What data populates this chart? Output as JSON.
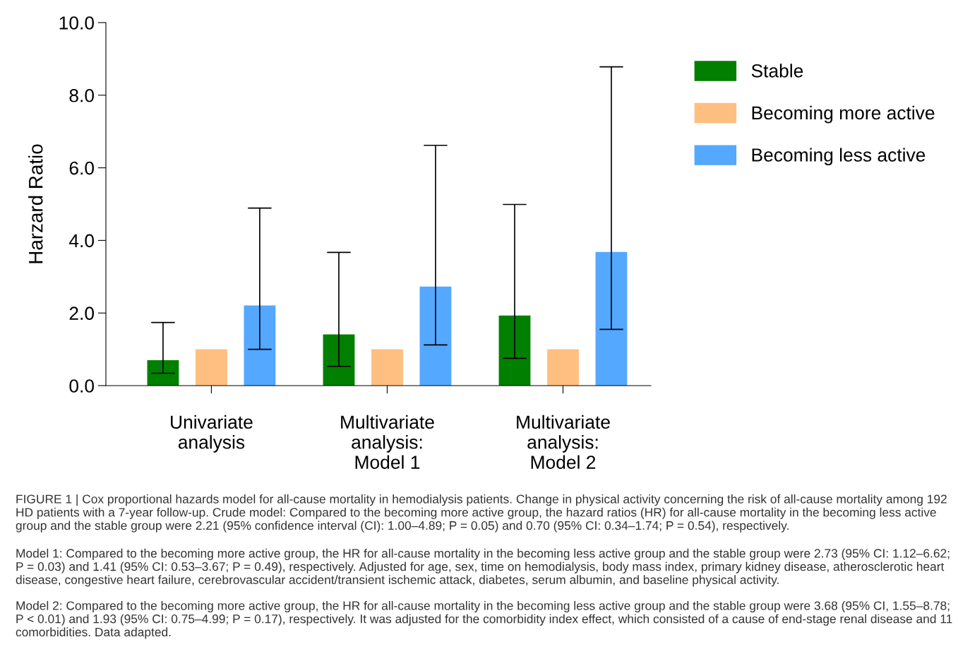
{
  "chart_data": {
    "type": "bar",
    "ylabel": "Harzard Ratio",
    "categories": [
      "Univariate analysis",
      "Multivariate analysis: Model 1",
      "Multivariate analysis: Model 2"
    ],
    "series": [
      {
        "name": "Stable",
        "color": "#007f00",
        "values": [
          0.7,
          1.41,
          1.93
        ],
        "errors": [
          [
            0.34,
            1.74
          ],
          [
            0.53,
            3.67
          ],
          [
            0.75,
            4.99
          ]
        ]
      },
      {
        "name": "Becoming more active",
        "color": "#ffbf80",
        "values": [
          1.0,
          1.0,
          1.0
        ],
        "errors": [
          null,
          null,
          null
        ]
      },
      {
        "name": "Becoming less active",
        "color": "#54a8ff",
        "values": [
          2.21,
          2.73,
          3.68
        ],
        "errors": [
          [
            1.0,
            4.89
          ],
          [
            1.12,
            6.62
          ],
          [
            1.55,
            8.78
          ]
        ]
      }
    ],
    "ylim": [
      0,
      10
    ],
    "yticks": [
      {
        "value": 0,
        "label": "0.0"
      },
      {
        "value": 2,
        "label": "2.0"
      },
      {
        "value": 4,
        "label": "4.0"
      },
      {
        "value": 6,
        "label": "6.0"
      },
      {
        "value": 8,
        "label": "8.0"
      },
      {
        "value": 10,
        "label": "10.0"
      }
    ],
    "grid": false,
    "legend": "right",
    "annotations": [
      "FIGURE 1 | Cox proportional hazards model for all-cause mortality in hemodialysis patients. Change in physical activity concerning the risk of all-cause mortality among 192 HD patients with a 7-year follow-up. Crude model: Compared to the becoming more active group, the hazard ratios (HR) for all-cause mortality in the becoming less active group and the stable group were 2.21 (95% confidence interval (CI): 1.00–4.89; P = 0.05) and 0.70 (95% CI: 0.34–1.74; P = 0.54), respectively.",
      "Model 1: Compared to the becoming more active group, the HR for all-cause mortality in the becoming less active group and the stable group were 2.73 (95% CI: 1.12–6.62; P = 0.03) and 1.41 (95% CI: 0.53–3.67; P = 0.49), respectively. Adjusted for age, sex, time on hemodialysis, body mass index, primary kidney disease, atherosclerotic heart disease, congestive heart failure, cerebrovascular accident/transient ischemic attack, diabetes, serum albumin, and baseline physical activity.",
      "Model 2: Compared to the becoming more active group, the HR for all-cause mortality in the becoming less active group and the stable group were 3.68 (95% CI, 1.55–8.78; P < 0.01) and 1.93 (95% CI: 0.75–4.99; P = 0.17), respectively. It was adjusted for the comorbidity index effect, which consisted of a cause of end-stage renal disease and 11 comorbidities. Data adapted."
    ]
  }
}
